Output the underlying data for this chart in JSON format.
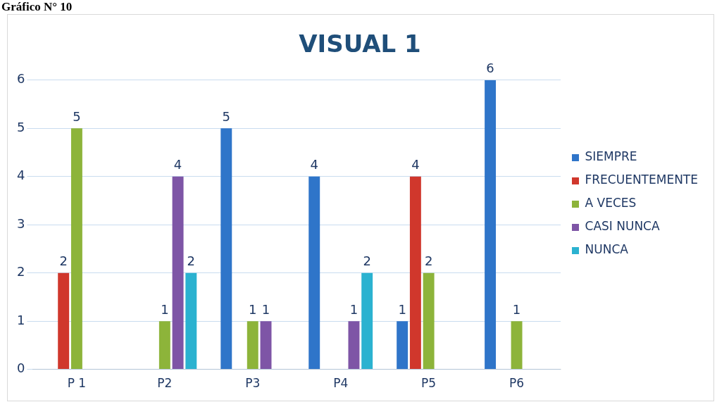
{
  "chart_data": {
    "type": "bar",
    "title": "VISUAL 1",
    "annotations": [
      "Gráfico N° 10"
    ],
    "categories": [
      "P 1",
      "P2",
      "P3",
      "P4",
      "P5",
      "P6"
    ],
    "series": [
      {
        "name": "SIEMPRE",
        "color": "#2f75c9",
        "values": [
          null,
          null,
          5,
          4,
          1,
          6
        ]
      },
      {
        "name": "FRECUENTEMENTE",
        "color": "#d0372c",
        "values": [
          2,
          null,
          null,
          null,
          4,
          null
        ]
      },
      {
        "name": "A VECES",
        "color": "#8db43a",
        "values": [
          5,
          1,
          1,
          null,
          2,
          1
        ]
      },
      {
        "name": "CASI NUNCA",
        "color": "#7e55a6",
        "values": [
          null,
          4,
          1,
          1,
          null,
          null
        ]
      },
      {
        "name": "NUNCA",
        "color": "#2bb2d0",
        "values": [
          null,
          2,
          null,
          2,
          null,
          null
        ]
      }
    ],
    "ylim": [
      0,
      6
    ],
    "yticks": [
      0,
      1,
      2,
      3,
      4,
      5,
      6
    ],
    "grid": "y",
    "legend": "right",
    "data_labels": true
  }
}
